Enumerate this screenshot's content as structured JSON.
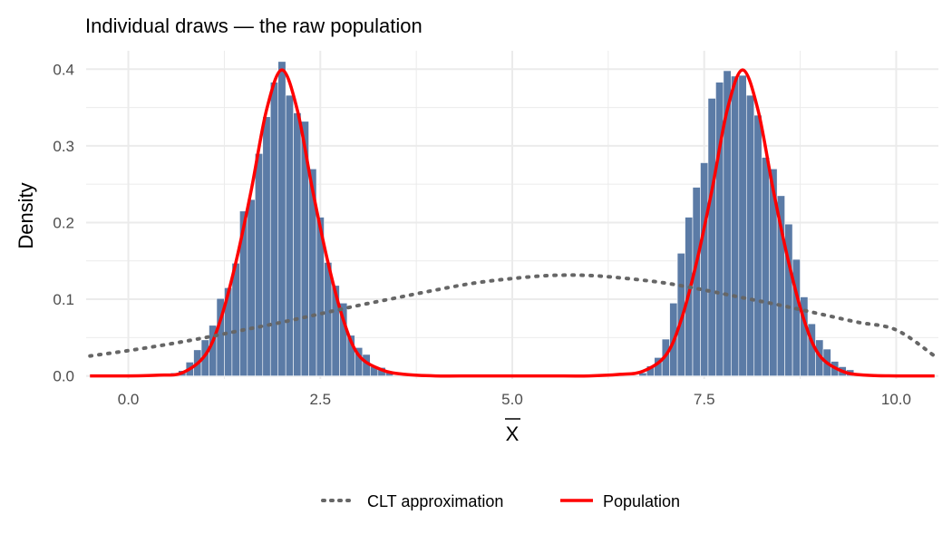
{
  "chart_data": {
    "type": "bar",
    "title": "Individual draws — the raw population",
    "xlabel": "X",
    "xlabel_overline": true,
    "ylabel": "Density",
    "xlim": [
      -0.55,
      10.55
    ],
    "ylim": [
      -0.004,
      0.424
    ],
    "x_ticks": [
      0,
      2.5,
      5,
      7.5,
      10
    ],
    "x_tick_labels": [
      "0.0",
      "2.5",
      "5.0",
      "7.5",
      "10.0"
    ],
    "y_ticks": [
      0,
      0.1,
      0.2,
      0.3,
      0.4
    ],
    "y_tick_labels": [
      "0.0",
      "0.1",
      "0.2",
      "0.3",
      "0.4"
    ],
    "grid": true,
    "legend_position": "bottom",
    "histogram": {
      "bin_width": 0.1,
      "bins": [
        {
          "x": 0.6,
          "y": 0.004
        },
        {
          "x": 0.7,
          "y": 0.007
        },
        {
          "x": 0.8,
          "y": 0.018
        },
        {
          "x": 0.9,
          "y": 0.034
        },
        {
          "x": 1.0,
          "y": 0.047
        },
        {
          "x": 1.1,
          "y": 0.066
        },
        {
          "x": 1.2,
          "y": 0.101
        },
        {
          "x": 1.3,
          "y": 0.115
        },
        {
          "x": 1.4,
          "y": 0.147
        },
        {
          "x": 1.5,
          "y": 0.215
        },
        {
          "x": 1.6,
          "y": 0.23
        },
        {
          "x": 1.7,
          "y": 0.29
        },
        {
          "x": 1.8,
          "y": 0.338
        },
        {
          "x": 1.9,
          "y": 0.383
        },
        {
          "x": 2.0,
          "y": 0.41
        },
        {
          "x": 2.1,
          "y": 0.366
        },
        {
          "x": 2.2,
          "y": 0.343
        },
        {
          "x": 2.3,
          "y": 0.332
        },
        {
          "x": 2.4,
          "y": 0.27
        },
        {
          "x": 2.5,
          "y": 0.207
        },
        {
          "x": 2.6,
          "y": 0.148
        },
        {
          "x": 2.7,
          "y": 0.118
        },
        {
          "x": 2.8,
          "y": 0.095
        },
        {
          "x": 2.9,
          "y": 0.053
        },
        {
          "x": 3.0,
          "y": 0.037
        },
        {
          "x": 3.1,
          "y": 0.028
        },
        {
          "x": 3.2,
          "y": 0.012
        },
        {
          "x": 3.3,
          "y": 0.011
        },
        {
          "x": 3.4,
          "y": 0.006
        },
        {
          "x": 6.7,
          "y": 0.004
        },
        {
          "x": 6.8,
          "y": 0.013
        },
        {
          "x": 6.9,
          "y": 0.024
        },
        {
          "x": 7.0,
          "y": 0.048
        },
        {
          "x": 7.1,
          "y": 0.095
        },
        {
          "x": 7.2,
          "y": 0.16
        },
        {
          "x": 7.3,
          "y": 0.207
        },
        {
          "x": 7.4,
          "y": 0.246
        },
        {
          "x": 7.5,
          "y": 0.278
        },
        {
          "x": 7.6,
          "y": 0.362
        },
        {
          "x": 7.7,
          "y": 0.383
        },
        {
          "x": 7.8,
          "y": 0.398
        },
        {
          "x": 7.9,
          "y": 0.391
        },
        {
          "x": 8.0,
          "y": 0.392
        },
        {
          "x": 8.1,
          "y": 0.366
        },
        {
          "x": 8.2,
          "y": 0.34
        },
        {
          "x": 8.3,
          "y": 0.285
        },
        {
          "x": 8.4,
          "y": 0.27
        },
        {
          "x": 8.5,
          "y": 0.235
        },
        {
          "x": 8.6,
          "y": 0.198
        },
        {
          "x": 8.7,
          "y": 0.152
        },
        {
          "x": 8.8,
          "y": 0.103
        },
        {
          "x": 8.9,
          "y": 0.068
        },
        {
          "x": 9.0,
          "y": 0.047
        },
        {
          "x": 9.1,
          "y": 0.035
        },
        {
          "x": 9.2,
          "y": 0.019
        },
        {
          "x": 9.3,
          "y": 0.012
        },
        {
          "x": 9.4,
          "y": 0.008
        }
      ],
      "fill": "#5b7ba6",
      "stroke": "#ffffff"
    },
    "series": [
      {
        "name": "Population",
        "style": "solid",
        "color": "#ff0000",
        "x": [
          -0.5,
          0.0,
          0.4,
          0.7,
          1.0,
          1.2,
          1.4,
          1.6,
          1.8,
          2.0,
          2.2,
          2.4,
          2.6,
          2.8,
          3.0,
          3.3,
          3.6,
          4.0,
          4.5,
          5.0,
          5.5,
          6.0,
          6.4,
          6.7,
          7.0,
          7.2,
          7.4,
          7.6,
          7.8,
          8.0,
          8.2,
          8.4,
          8.6,
          8.8,
          9.0,
          9.3,
          9.6,
          10.0,
          10.5
        ],
        "y": [
          0.0,
          0.0,
          0.001,
          0.004,
          0.027,
          0.073,
          0.148,
          0.242,
          0.347,
          0.399,
          0.347,
          0.242,
          0.148,
          0.073,
          0.027,
          0.008,
          0.002,
          0.0,
          0.0,
          0.0,
          0.0,
          0.0,
          0.002,
          0.006,
          0.027,
          0.073,
          0.148,
          0.242,
          0.347,
          0.399,
          0.347,
          0.242,
          0.148,
          0.073,
          0.027,
          0.006,
          0.001,
          0.0,
          0.0
        ]
      },
      {
        "name": "CLT approximation",
        "style": "dotted",
        "color": "#666666",
        "x": [
          -0.5,
          0.0,
          0.5,
          1.0,
          1.5,
          2.0,
          2.5,
          3.0,
          3.5,
          4.0,
          4.5,
          5.0,
          5.5,
          6.0,
          6.5,
          7.0,
          7.5,
          8.0,
          8.5,
          9.0,
          9.5,
          10.0,
          10.5
        ],
        "y": [
          0.026,
          0.033,
          0.041,
          0.05,
          0.06,
          0.07,
          0.081,
          0.092,
          0.102,
          0.112,
          0.121,
          0.127,
          0.131,
          0.131,
          0.127,
          0.121,
          0.112,
          0.102,
          0.092,
          0.081,
          0.07,
          0.06,
          0.026
        ]
      }
    ],
    "legend": [
      {
        "label": "CLT approximation",
        "style": "dotted",
        "color": "#666666"
      },
      {
        "label": "Population",
        "style": "solid",
        "color": "#ff0000"
      }
    ],
    "colors": {
      "grid": "#ebebeb",
      "tick_text": "#4d4d4d",
      "background": "#ffffff"
    }
  }
}
